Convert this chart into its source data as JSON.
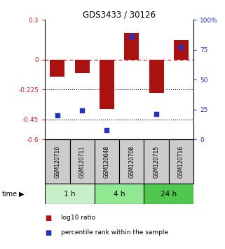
{
  "title": "GDS3433 / 30126",
  "samples": [
    "GSM120710",
    "GSM120711",
    "GSM120648",
    "GSM120708",
    "GSM120715",
    "GSM120716"
  ],
  "log10_ratio": [
    -0.13,
    -0.1,
    -0.37,
    0.2,
    -0.25,
    0.15
  ],
  "percentile_rank": [
    20,
    24,
    8,
    86,
    21,
    77
  ],
  "groups": [
    {
      "label": "1 h",
      "indices": [
        0,
        1
      ],
      "color": "#c8f0c8"
    },
    {
      "label": "4 h",
      "indices": [
        2,
        3
      ],
      "color": "#90e890"
    },
    {
      "label": "24 h",
      "indices": [
        4,
        5
      ],
      "color": "#50c850"
    }
  ],
  "bar_color": "#aa1111",
  "dot_color": "#2233bb",
  "left_ylim": [
    -0.6,
    0.3
  ],
  "right_ylim": [
    0,
    100
  ],
  "left_yticks": [
    0.3,
    0,
    -0.225,
    -0.45,
    -0.6
  ],
  "left_yticklabels": [
    "0.3",
    "0",
    "-0.225",
    "-0.45",
    "-0.6"
  ],
  "right_yticks": [
    100,
    75,
    50,
    25,
    0
  ],
  "right_yticklabels": [
    "100%",
    "75",
    "50",
    "25",
    "0"
  ],
  "hlines_black": [
    -0.225,
    -0.45
  ],
  "hline_red": 0,
  "background_color": "#ffffff",
  "sample_box_color": "#cccccc",
  "bar_width": 0.6
}
